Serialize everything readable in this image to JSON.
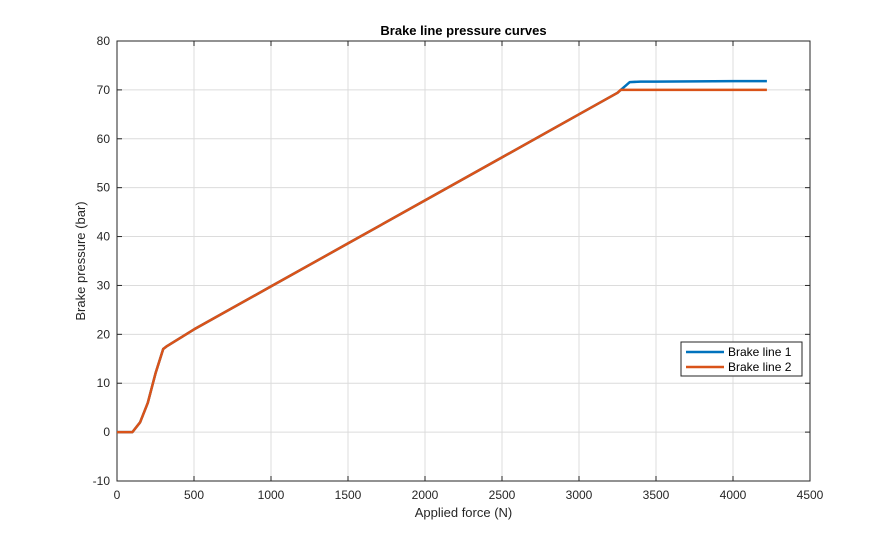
{
  "chart_data": {
    "type": "line",
    "title": "Brake line pressure curves",
    "xlabel": "Applied force (N)",
    "ylabel": "Brake pressure (bar)",
    "xlim": [
      0,
      4500
    ],
    "ylim": [
      -10,
      80
    ],
    "xticks": [
      0,
      500,
      1000,
      1500,
      2000,
      2500,
      3000,
      3500,
      4000,
      4500
    ],
    "yticks": [
      -10,
      0,
      10,
      20,
      30,
      40,
      50,
      60,
      70,
      80
    ],
    "xtick_labels": [
      "0",
      "500",
      "1000",
      "1500",
      "2000",
      "2500",
      "3000",
      "3500",
      "4000",
      "4500"
    ],
    "ytick_labels": [
      "-10",
      "0",
      "10",
      "20",
      "30",
      "40",
      "50",
      "60",
      "70",
      "80"
    ],
    "grid": true,
    "legend_position": "bottom-right",
    "series": [
      {
        "name": "Brake line 1",
        "color": "#0072BD",
        "x": [
          0,
          100,
          150,
          200,
          250,
          300,
          320,
          500,
          1000,
          1500,
          2000,
          2500,
          3000,
          3250,
          3330,
          3400,
          3500,
          4000,
          4220
        ],
        "y": [
          0,
          0,
          2,
          6,
          12,
          17,
          17.5,
          21,
          29.8,
          38.6,
          47.4,
          56.2,
          65,
          69.4,
          71.6,
          71.7,
          71.7,
          71.8,
          71.8
        ]
      },
      {
        "name": "Brake line 2",
        "color": "#D95319",
        "x": [
          0,
          100,
          150,
          200,
          250,
          300,
          320,
          500,
          1000,
          1500,
          2000,
          2500,
          3000,
          3250,
          3270,
          3400,
          3500,
          4000,
          4220
        ],
        "y": [
          0,
          0,
          2,
          6,
          12,
          17,
          17.5,
          21,
          29.8,
          38.6,
          47.4,
          56.2,
          65,
          69.4,
          70,
          70,
          70,
          70,
          70
        ]
      }
    ]
  }
}
